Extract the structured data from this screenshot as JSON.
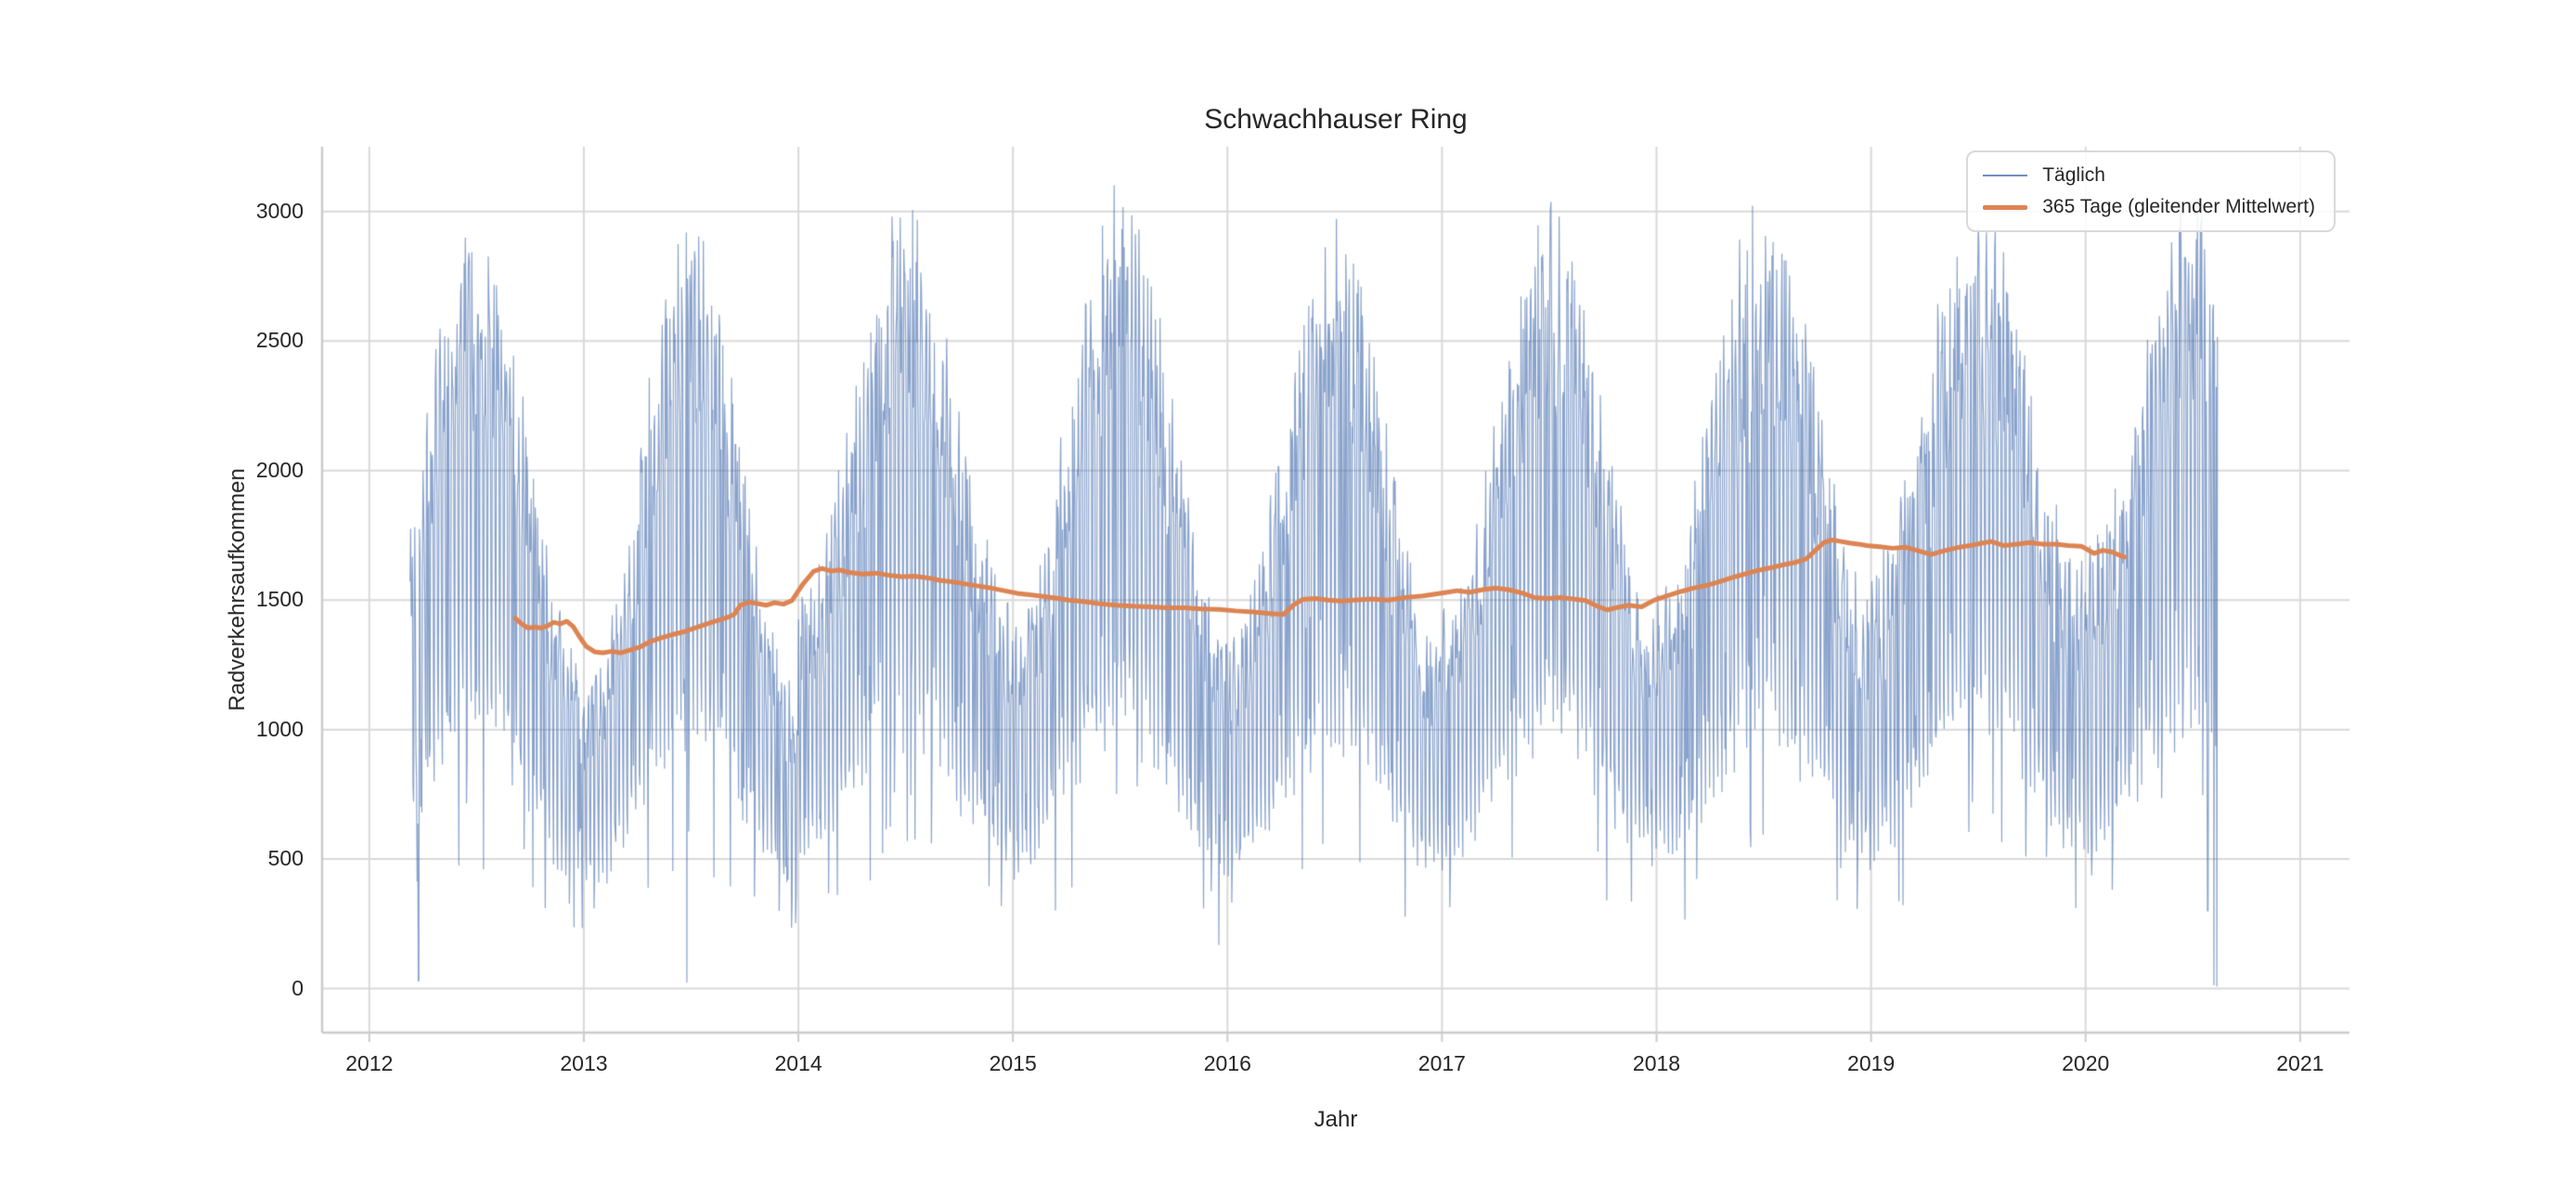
{
  "chart_data": {
    "type": "line",
    "title": "Schwachhauser Ring",
    "xlabel": "Jahr",
    "ylabel": "Radverkehrsaufkommen",
    "xlim": [
      2011.78,
      2021.23
    ],
    "ylim": [
      -170,
      3250
    ],
    "x_ticks": [
      2012,
      2013,
      2014,
      2015,
      2016,
      2017,
      2018,
      2019,
      2020,
      2021
    ],
    "y_ticks": [
      0,
      500,
      1000,
      1500,
      2000,
      2500,
      3000
    ],
    "grid": true,
    "background": "#ffffff",
    "grid_color": "#d9d9d9",
    "spine_color": "#cccccc",
    "text_color": "#262626",
    "legend_position": "upper right",
    "series": [
      {
        "name": "Täglich",
        "color": "#4c72b0",
        "alpha": 0.65,
        "line_width": 1.2,
        "kind": "daily-generated",
        "daily_generator": {
          "start": 2012.19,
          "end": 2020.615,
          "seed": 42,
          "noise": 0.16,
          "rain_prob": 0.08,
          "rain_factor": 0.5,
          "min_value": 60,
          "max_value": 3100,
          "per_week": [
            1.02,
            1.06,
            1.06,
            1.04,
            0.97,
            0.55,
            0.43
          ],
          "years": [
            {
              "year": 2012,
              "winter": 1050,
              "summer": 2450
            },
            {
              "year": 2013,
              "winter": 950,
              "summer": 2400
            },
            {
              "year": 2014,
              "winter": 1250,
              "summer": 2480
            },
            {
              "year": 2015,
              "winter": 1150,
              "summer": 2550
            },
            {
              "year": 2016,
              "winter": 1100,
              "summer": 2450
            },
            {
              "year": 2017,
              "winter": 1200,
              "summer": 2480
            },
            {
              "year": 2018,
              "winter": 1250,
              "summer": 2520
            },
            {
              "year": 2019,
              "winter": 1350,
              "summer": 2520
            },
            {
              "year": 2020,
              "winter": 1400,
              "summer": 2550
            }
          ],
          "drops": [
            [
              2012.23,
              30
            ],
            [
              2013.48,
              25
            ],
            [
              2015.96,
              170
            ],
            [
              2020.57,
              300
            ],
            [
              2020.598,
              15
            ],
            [
              2020.612,
              10
            ]
          ]
        }
      },
      {
        "name": "365 Tage (gleitender Mittelwert)",
        "color": "#dd8452",
        "alpha": 1.0,
        "line_width": 5,
        "kind": "points",
        "points": [
          [
            2012.68,
            1430
          ],
          [
            2012.71,
            1408
          ],
          [
            2012.74,
            1392
          ],
          [
            2012.77,
            1396
          ],
          [
            2012.8,
            1392
          ],
          [
            2012.83,
            1400
          ],
          [
            2012.86,
            1414
          ],
          [
            2012.89,
            1408
          ],
          [
            2012.92,
            1418
          ],
          [
            2012.95,
            1398
          ],
          [
            2012.98,
            1358
          ],
          [
            2013.01,
            1322
          ],
          [
            2013.05,
            1300
          ],
          [
            2013.09,
            1296
          ],
          [
            2013.13,
            1302
          ],
          [
            2013.17,
            1296
          ],
          [
            2013.21,
            1306
          ],
          [
            2013.26,
            1318
          ],
          [
            2013.31,
            1340
          ],
          [
            2013.36,
            1354
          ],
          [
            2013.41,
            1366
          ],
          [
            2013.46,
            1376
          ],
          [
            2013.51,
            1390
          ],
          [
            2013.56,
            1404
          ],
          [
            2013.61,
            1418
          ],
          [
            2013.66,
            1430
          ],
          [
            2013.7,
            1444
          ],
          [
            2013.73,
            1480
          ],
          [
            2013.77,
            1492
          ],
          [
            2013.81,
            1486
          ],
          [
            2013.85,
            1480
          ],
          [
            2013.89,
            1490
          ],
          [
            2013.93,
            1484
          ],
          [
            2013.97,
            1498
          ],
          [
            2014.02,
            1560
          ],
          [
            2014.07,
            1610
          ],
          [
            2014.11,
            1622
          ],
          [
            2014.15,
            1612
          ],
          [
            2014.19,
            1616
          ],
          [
            2014.24,
            1606
          ],
          [
            2014.3,
            1600
          ],
          [
            2014.36,
            1604
          ],
          [
            2014.42,
            1596
          ],
          [
            2014.48,
            1590
          ],
          [
            2014.54,
            1592
          ],
          [
            2014.6,
            1586
          ],
          [
            2014.66,
            1576
          ],
          [
            2014.72,
            1570
          ],
          [
            2014.78,
            1562
          ],
          [
            2014.84,
            1554
          ],
          [
            2014.9,
            1546
          ],
          [
            2014.96,
            1536
          ],
          [
            2015.02,
            1526
          ],
          [
            2015.08,
            1520
          ],
          [
            2015.14,
            1514
          ],
          [
            2015.2,
            1508
          ],
          [
            2015.26,
            1500
          ],
          [
            2015.33,
            1494
          ],
          [
            2015.4,
            1486
          ],
          [
            2015.48,
            1480
          ],
          [
            2015.56,
            1476
          ],
          [
            2015.64,
            1474
          ],
          [
            2015.72,
            1470
          ],
          [
            2015.8,
            1470
          ],
          [
            2015.88,
            1466
          ],
          [
            2015.96,
            1464
          ],
          [
            2016.04,
            1458
          ],
          [
            2016.12,
            1454
          ],
          [
            2016.2,
            1448
          ],
          [
            2016.26,
            1444
          ],
          [
            2016.31,
            1482
          ],
          [
            2016.35,
            1502
          ],
          [
            2016.41,
            1506
          ],
          [
            2016.47,
            1500
          ],
          [
            2016.53,
            1496
          ],
          [
            2016.59,
            1500
          ],
          [
            2016.67,
            1504
          ],
          [
            2016.75,
            1500
          ],
          [
            2016.83,
            1510
          ],
          [
            2016.91,
            1516
          ],
          [
            2016.99,
            1526
          ],
          [
            2017.07,
            1536
          ],
          [
            2017.13,
            1530
          ],
          [
            2017.19,
            1540
          ],
          [
            2017.25,
            1546
          ],
          [
            2017.31,
            1540
          ],
          [
            2017.37,
            1528
          ],
          [
            2017.43,
            1510
          ],
          [
            2017.49,
            1506
          ],
          [
            2017.55,
            1510
          ],
          [
            2017.61,
            1504
          ],
          [
            2017.67,
            1498
          ],
          [
            2017.73,
            1474
          ],
          [
            2017.77,
            1462
          ],
          [
            2017.81,
            1470
          ],
          [
            2017.87,
            1480
          ],
          [
            2017.93,
            1474
          ],
          [
            2017.99,
            1500
          ],
          [
            2018.05,
            1516
          ],
          [
            2018.11,
            1532
          ],
          [
            2018.17,
            1546
          ],
          [
            2018.23,
            1556
          ],
          [
            2018.29,
            1570
          ],
          [
            2018.35,
            1586
          ],
          [
            2018.41,
            1600
          ],
          [
            2018.47,
            1614
          ],
          [
            2018.53,
            1624
          ],
          [
            2018.59,
            1636
          ],
          [
            2018.65,
            1646
          ],
          [
            2018.7,
            1660
          ],
          [
            2018.74,
            1692
          ],
          [
            2018.78,
            1722
          ],
          [
            2018.82,
            1732
          ],
          [
            2018.86,
            1726
          ],
          [
            2018.9,
            1720
          ],
          [
            2018.94,
            1716
          ],
          [
            2018.98,
            1710
          ],
          [
            2019.04,
            1706
          ],
          [
            2019.1,
            1700
          ],
          [
            2019.16,
            1704
          ],
          [
            2019.22,
            1690
          ],
          [
            2019.28,
            1676
          ],
          [
            2019.34,
            1690
          ],
          [
            2019.4,
            1702
          ],
          [
            2019.46,
            1710
          ],
          [
            2019.52,
            1720
          ],
          [
            2019.56,
            1726
          ],
          [
            2019.62,
            1710
          ],
          [
            2019.68,
            1716
          ],
          [
            2019.74,
            1722
          ],
          [
            2019.8,
            1716
          ],
          [
            2019.86,
            1716
          ],
          [
            2019.92,
            1710
          ],
          [
            2019.98,
            1708
          ],
          [
            2020.04,
            1680
          ],
          [
            2020.08,
            1692
          ],
          [
            2020.12,
            1686
          ],
          [
            2020.18,
            1666
          ]
        ]
      }
    ]
  }
}
